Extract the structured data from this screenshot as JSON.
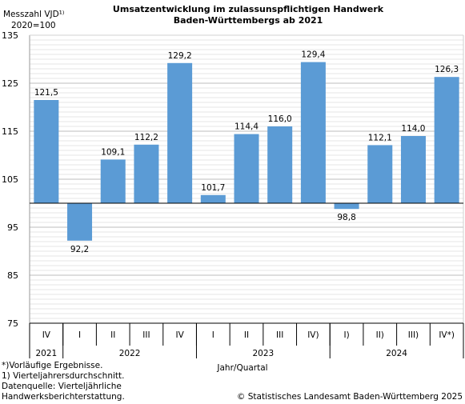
{
  "chart_data": {
    "type": "bar",
    "title_line1": "Umsatzentwicklung im zulassunspflichtigen Handwerk",
    "title_line2": "Baden-Württembergs ab 2021",
    "ylabel_line1": "Messzahl VJD¹⁾",
    "ylabel_line2": "2020=100",
    "xlabel": "Jahr/Quartal",
    "ylim": [
      75,
      135
    ],
    "baseline": 100,
    "yticks": [
      "135",
      "125",
      "115",
      "105",
      "95",
      "85",
      "75"
    ],
    "ytick_values": [
      135,
      125,
      115,
      105,
      95,
      85,
      75
    ],
    "categories": [
      "IV",
      "I",
      "II",
      "III",
      "IV",
      "I",
      "II",
      "III",
      "IV)",
      "I)",
      "II)",
      "III)",
      "IV*)"
    ],
    "values": [
      121.5,
      92.2,
      109.1,
      112.2,
      129.2,
      101.7,
      114.4,
      116.0,
      129.4,
      98.8,
      112.1,
      114.0,
      126.3
    ],
    "value_labels": [
      "121,5",
      "92,2",
      "109,1",
      "112,2",
      "129,2",
      "101,7",
      "114,4",
      "116,0",
      "129,4",
      "98,8",
      "112,1",
      "114,0",
      "126,3"
    ],
    "years": [
      {
        "label": "2021",
        "start": 0,
        "count": 1
      },
      {
        "label": "2022",
        "start": 1,
        "count": 4
      },
      {
        "label": "2023",
        "start": 5,
        "count": 4
      },
      {
        "label": "2024",
        "start": 9,
        "count": 4
      }
    ],
    "grid": true,
    "bar_color": "#5b9bd5"
  },
  "footnotes": {
    "line1": "*)Vorläufige Ergebnisse.",
    "line2": "1) Vierteljahrersdurchschnitt.",
    "line3": "Datenquelle: Vierteljährliche",
    "line4": "Handwerksberichterstattung."
  },
  "copyright": "© Statistisches Landesamt Baden-Württemberg 2025"
}
